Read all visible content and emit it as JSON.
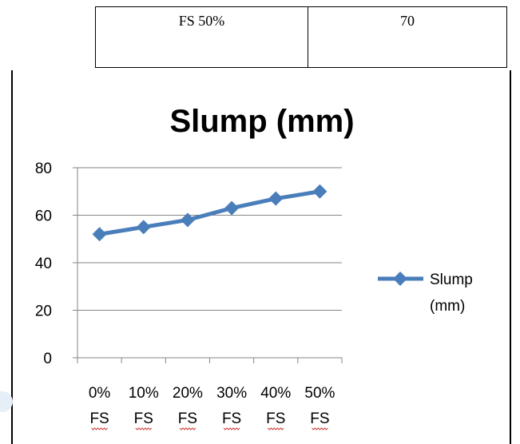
{
  "table": {
    "cells": [
      "FS  50%",
      "70"
    ]
  },
  "chart_data": {
    "type": "line",
    "title": "Slump (mm)",
    "categories": [
      "0%\nFS",
      "10%\nFS",
      "20%\nFS",
      "30%\nFS",
      "40%\nFS",
      "50%\nFS"
    ],
    "series": [
      {
        "name": "Slump (mm)",
        "values": [
          52,
          55,
          58,
          63,
          67,
          70
        ],
        "color": "#4a7ebb",
        "marker": "diamond"
      }
    ],
    "ylim": [
      0,
      80
    ],
    "yticks": [
      0,
      20,
      40,
      60,
      80
    ],
    "grid": true,
    "legend": "right"
  }
}
